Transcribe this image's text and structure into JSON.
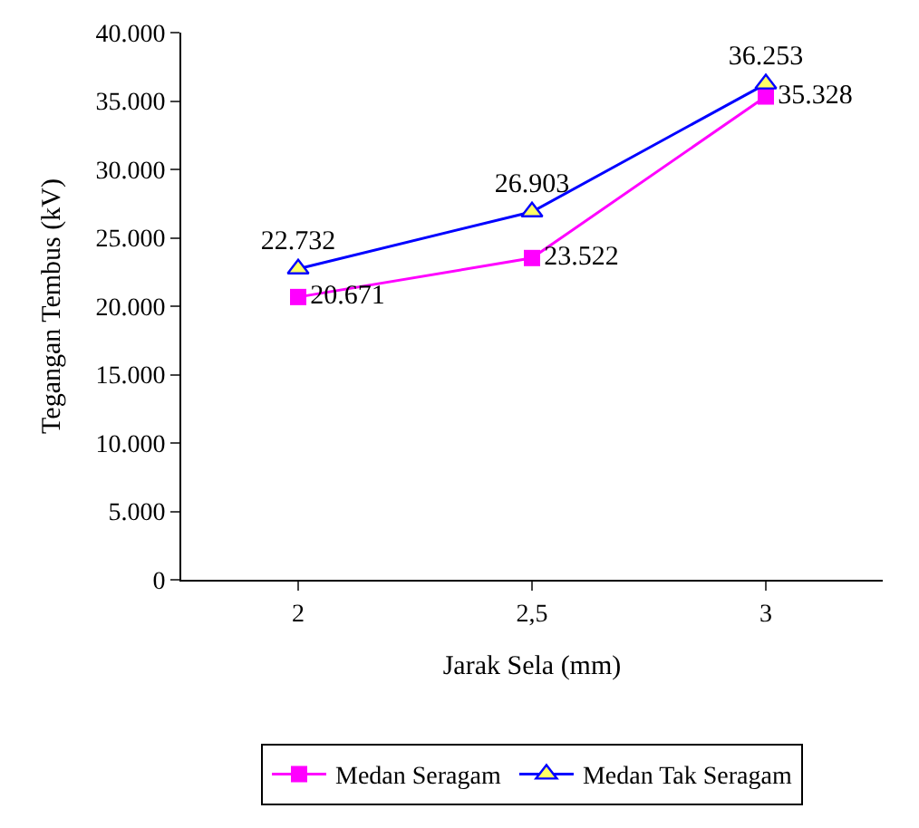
{
  "chart_data": {
    "type": "line",
    "xlabel": "Jarak Sela (mm)",
    "ylabel": "Tegangan Tembus (kV)",
    "categories": [
      "2",
      "2,5",
      "3"
    ],
    "series": [
      {
        "name": "Medan Seragam",
        "color": "#ff00ff",
        "marker": "square",
        "values": [
          20671,
          23522,
          35328
        ],
        "value_labels": [
          "20.671",
          "23.522",
          "35.328"
        ]
      },
      {
        "name": "Medan Tak Seragam",
        "color": "#0000ff",
        "marker": "triangle",
        "values": [
          22732,
          26903,
          36253
        ],
        "value_labels": [
          "22.732",
          "26.903",
          "36.253"
        ]
      }
    ],
    "ylim": [
      0,
      40000
    ],
    "yticks": [
      0,
      {
        "value": 5000,
        "label": "5.000"
      },
      {
        "value": 10000,
        "label": "10.000"
      },
      {
        "value": 15000,
        "label": "15.000"
      },
      {
        "value": 20000,
        "label": "20.000"
      },
      {
        "value": 25000,
        "label": "25.000"
      },
      {
        "value": 30000,
        "label": "30.000"
      },
      {
        "value": 35000,
        "label": "35.000"
      },
      {
        "value": 40000,
        "label": "40.000"
      }
    ],
    "legend": "bottom",
    "line_style": "solid"
  }
}
